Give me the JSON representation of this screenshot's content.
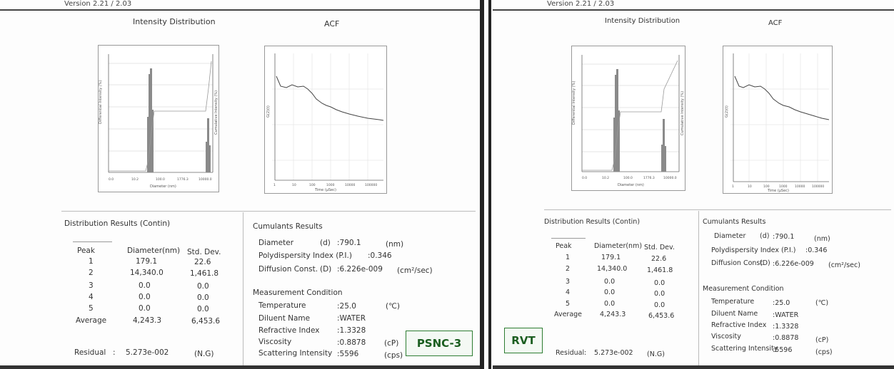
{
  "version": "Version 2.21 / 2.03",
  "plots": {
    "intensity": {
      "title": "Intensity Distribution",
      "ylabel_left": "Differential Intensity (%)",
      "ylabel_right": "Cumulative Intensity (%)",
      "xlabel": "Diameter (nm)",
      "x_ticks": [
        "0.0",
        "10.2",
        "100.0",
        "1776.3",
        "10000.0"
      ]
    },
    "acf": {
      "title": "ACF",
      "ylabel": "G(2)(t)",
      "xlabel": "Time (µSec)",
      "x_ticks": [
        "1",
        "10",
        "100",
        "1000",
        "10000",
        "100000"
      ]
    }
  },
  "distribution": {
    "title": "Distribution Results (Contin)",
    "headers": [
      "Peak",
      "Diameter(nm)",
      "Std. Dev."
    ],
    "rows": [
      {
        "peak": "1",
        "diameter": "179.1",
        "std": "22.6"
      },
      {
        "peak": "2",
        "diameter": "14,340.0",
        "std": "1,461.8"
      },
      {
        "peak": "3",
        "diameter": "0.0",
        "std": "0.0"
      },
      {
        "peak": "4",
        "diameter": "0.0",
        "std": "0.0"
      },
      {
        "peak": "5",
        "diameter": "0.0",
        "std": "0.0"
      },
      {
        "peak": "Average",
        "diameter": "4,243.3",
        "std": "6,453.6"
      }
    ],
    "residual_label": "Residual",
    "residual_sep": ":",
    "residual_value": "5.273e-002",
    "residual_note": "(N.G)"
  },
  "cumulants": {
    "title": "Cumulants Results",
    "diameter": {
      "label": "Diameter",
      "sym": "(d)",
      "value": ":790.1",
      "unit": "(nm)"
    },
    "pi": {
      "label": "Polydispersity Index (P.I.)",
      "value": ":0.346"
    },
    "diffusion": {
      "label": "Diffusion Const.",
      "sym": "(D)",
      "value": ":6.226e-009",
      "unit": "(cm²/sec)"
    }
  },
  "measurement": {
    "title": "Measurement Condition",
    "rows": [
      {
        "label": "Temperature",
        "value": ":25.0",
        "unit": "(℃)"
      },
      {
        "label": "Diluent Name",
        "value": ":WATER",
        "unit": ""
      },
      {
        "label": "Refractive Index",
        "value": ":1.3328",
        "unit": ""
      },
      {
        "label": "Viscosity",
        "value": ":0.8878",
        "unit": "(cP)"
      },
      {
        "label": "Scattering Intensity",
        "value": ":5596",
        "unit": "(cps)"
      }
    ]
  },
  "stamps": {
    "left": "PSNC-3",
    "right": "RVT"
  },
  "colors": {
    "stamp_border": "#2e7d32",
    "stamp_text": "#1b5e20",
    "bar": "#8a8a8a"
  }
}
